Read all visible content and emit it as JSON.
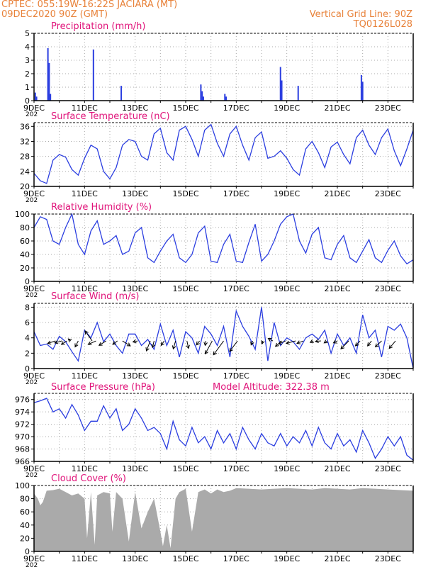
{
  "header": {
    "line1": "CPTEC:   055:19W-16:22S   JACIARA (MT)",
    "line2": "09DEC2020 90Z (GMT)",
    "grid_note": "Vertical Grid Line: 90Z",
    "model_id": "TQ0126L028"
  },
  "colors": {
    "line": "#2b3ee0",
    "title": "#e0147a",
    "header": "#e8823a",
    "bars": "#2b3ee0",
    "cloud": "#aaaaaa"
  },
  "x_tick_labels": [
    "9DEC",
    "11DEC",
    "13DEC",
    "15DEC",
    "17DEC",
    "19DEC",
    "21DEC",
    "23DEC"
  ],
  "year_fragment": "202",
  "chart_data": [
    {
      "id": "precip",
      "type": "bar",
      "title": "Precipitation (mm/h)",
      "ylim": [
        0,
        5
      ],
      "yticks": [
        0,
        1,
        2,
        3,
        4,
        5
      ],
      "x_unit": "days since 9DEC 00Z",
      "x_range": [
        0,
        15
      ],
      "points": [
        [
          0.05,
          0.6
        ],
        [
          0.1,
          0.3
        ],
        [
          0.55,
          3.9
        ],
        [
          0.6,
          2.8
        ],
        [
          0.65,
          0.5
        ],
        [
          2.35,
          3.8
        ],
        [
          3.45,
          1.1
        ],
        [
          6.6,
          1.2
        ],
        [
          6.65,
          0.7
        ],
        [
          6.7,
          0.3
        ],
        [
          7.55,
          0.5
        ],
        [
          7.6,
          0.3
        ],
        [
          9.75,
          2.5
        ],
        [
          9.8,
          1.5
        ],
        [
          10.45,
          1.1
        ],
        [
          12.95,
          1.9
        ],
        [
          13.0,
          1.4
        ]
      ]
    },
    {
      "id": "temp",
      "type": "line",
      "title": "Surface Temperature (nC)",
      "ylim": [
        20,
        37
      ],
      "yticks": [
        20,
        24,
        28,
        32,
        36
      ],
      "x_range": [
        0,
        15
      ],
      "x": [
        0,
        0.25,
        0.5,
        0.75,
        1,
        1.25,
        1.5,
        1.75,
        2,
        2.25,
        2.5,
        2.75,
        3,
        3.25,
        3.5,
        3.75,
        4,
        4.25,
        4.5,
        4.75,
        5,
        5.25,
        5.5,
        5.75,
        6,
        6.25,
        6.5,
        6.75,
        7,
        7.25,
        7.5,
        7.75,
        8,
        8.25,
        8.5,
        8.75,
        9,
        9.25,
        9.5,
        9.75,
        10,
        10.25,
        10.5,
        10.75,
        11,
        11.25,
        11.5,
        11.75,
        12,
        12.25,
        12.5,
        12.75,
        13,
        13.25,
        13.5,
        13.75,
        14,
        14.25,
        14.5,
        14.75,
        15
      ],
      "y": [
        23.5,
        21.5,
        20.8,
        27,
        28.5,
        27.8,
        24.5,
        23,
        27.5,
        31,
        30,
        24,
        22,
        25,
        31,
        32.5,
        32,
        28,
        27,
        34,
        35.5,
        29,
        27,
        35,
        36,
        32.5,
        28,
        35,
        36.5,
        31.5,
        28,
        34,
        36,
        31,
        27,
        33,
        34.5,
        27.5,
        28,
        29.5,
        27.5,
        24.5,
        23,
        30,
        32,
        29,
        25,
        30.5,
        31.8,
        28.5,
        26,
        33,
        35,
        31,
        28.5,
        33,
        35.3,
        29.5,
        25.5,
        30,
        35
      ]
    },
    {
      "id": "rh",
      "type": "line",
      "title": "Relative Humidity (%)",
      "ylim": [
        0,
        100
      ],
      "yticks": [
        0,
        20,
        40,
        60,
        80,
        100
      ],
      "x_range": [
        0,
        15
      ],
      "x": [
        0,
        0.25,
        0.5,
        0.75,
        1,
        1.25,
        1.5,
        1.75,
        2,
        2.25,
        2.5,
        2.75,
        3,
        3.25,
        3.5,
        3.75,
        4,
        4.25,
        4.5,
        4.75,
        5,
        5.25,
        5.5,
        5.75,
        6,
        6.25,
        6.5,
        6.75,
        7,
        7.25,
        7.5,
        7.75,
        8,
        8.25,
        8.5,
        8.75,
        9,
        9.25,
        9.5,
        9.75,
        10,
        10.25,
        10.5,
        10.75,
        11,
        11.25,
        11.5,
        11.75,
        12,
        12.25,
        12.5,
        12.75,
        13,
        13.25,
        13.5,
        13.75,
        14,
        14.25,
        14.5,
        14.75,
        15
      ],
      "y": [
        80,
        96,
        92,
        60,
        55,
        80,
        100,
        55,
        40,
        75,
        90,
        55,
        60,
        68,
        40,
        45,
        72,
        80,
        35,
        28,
        45,
        60,
        70,
        35,
        28,
        40,
        72,
        82,
        30,
        28,
        55,
        70,
        30,
        28,
        58,
        85,
        30,
        40,
        60,
        85,
        96,
        100,
        60,
        42,
        70,
        80,
        35,
        32,
        55,
        68,
        35,
        28,
        45,
        62,
        35,
        28,
        46,
        60,
        38,
        26,
        32
      ]
    },
    {
      "id": "wind",
      "type": "line",
      "title": "Surface Wind (m/s)",
      "ylim": [
        0,
        8.5
      ],
      "yticks": [
        0,
        2,
        4,
        6,
        8
      ],
      "x_range": [
        0,
        15
      ],
      "x": [
        0,
        0.25,
        0.5,
        0.75,
        1,
        1.25,
        1.5,
        1.75,
        2,
        2.25,
        2.5,
        2.75,
        3,
        3.25,
        3.5,
        3.75,
        4,
        4.25,
        4.5,
        4.75,
        5,
        5.25,
        5.5,
        5.75,
        6,
        6.25,
        6.5,
        6.75,
        7,
        7.25,
        7.5,
        7.75,
        8,
        8.25,
        8.5,
        8.75,
        9,
        9.25,
        9.5,
        9.75,
        10,
        10.25,
        10.5,
        10.75,
        11,
        11.25,
        11.5,
        11.75,
        12,
        12.25,
        12.5,
        12.75,
        13,
        13.25,
        13.5,
        13.75,
        14,
        14.25,
        14.5,
        14.75,
        15
      ],
      "y": [
        4.8,
        3,
        3.2,
        2.5,
        4.2,
        3.5,
        2.2,
        1,
        5,
        4,
        6,
        3.5,
        4.5,
        3,
        2,
        4.5,
        4.5,
        3,
        3.8,
        2.5,
        5.8,
        3,
        5,
        1.5,
        4.8,
        4,
        2,
        5.5,
        4.5,
        3,
        5.5,
        1.5,
        7.5,
        5.5,
        4.2,
        2.5,
        8,
        1,
        6,
        3,
        4,
        3.5,
        2.5,
        4,
        4.5,
        3.8,
        5,
        2,
        4.5,
        3,
        4,
        2,
        7,
        4,
        5,
        1.5,
        5.5,
        5,
        5.8,
        4,
        0
      ],
      "arrows": [
        [
          0.85,
          -0.5,
          0.25
        ],
        [
          1.1,
          -0.45,
          0.2
        ],
        [
          1.3,
          -0.35,
          0.35
        ],
        [
          1.45,
          -0.15,
          -0.2
        ],
        [
          1.75,
          -0.2,
          0.6
        ],
        [
          2.3,
          -0.45,
          -1.0
        ],
        [
          2.45,
          -0.5,
          0.35
        ],
        [
          2.85,
          -0.45,
          0.45
        ],
        [
          3.3,
          -0.3,
          0.35
        ],
        [
          3.5,
          0.5,
          0.5
        ],
        [
          4.1,
          -0.3,
          0.1
        ],
        [
          4.6,
          -0.25,
          1.0
        ],
        [
          4.75,
          -0.1,
          0.65
        ],
        [
          5.15,
          -0.2,
          0.45
        ],
        [
          5.6,
          -0.15,
          0.8
        ],
        [
          6.05,
          0.1,
          0.75
        ],
        [
          6.55,
          -0.2,
          0.4
        ],
        [
          6.8,
          -0.05,
          0.45
        ],
        [
          7.05,
          -0.45,
          1.3
        ],
        [
          7.5,
          -0.65,
          1.4
        ],
        [
          8.05,
          -0.5,
          1.05
        ],
        [
          8.65,
          -0.1,
          0.4
        ],
        [
          9.05,
          -0.05,
          0.3
        ],
        [
          9.45,
          -0.3,
          -0.25
        ],
        [
          9.8,
          -0.4,
          0.55
        ],
        [
          9.95,
          -0.45,
          0.3
        ],
        [
          10.35,
          -0.6,
          0.25
        ],
        [
          10.65,
          -0.4,
          0.25
        ],
        [
          11.05,
          -0.2,
          0.15
        ],
        [
          11.35,
          -0.35,
          0.05
        ],
        [
          11.6,
          -0.2,
          0.2
        ],
        [
          12.0,
          -0.25,
          0.2
        ],
        [
          12.45,
          -0.5,
          0.8
        ],
        [
          12.9,
          -0.3,
          0.5
        ],
        [
          13.35,
          -0.25,
          0.5
        ],
        [
          13.75,
          -0.4,
          0.6
        ],
        [
          14.3,
          -0.4,
          0.75
        ]
      ]
    },
    {
      "id": "press",
      "type": "line",
      "title": "Surface Pressure (hPa)",
      "subtitle": "Model Altitude: 322.38 m",
      "ylim": [
        966,
        977
      ],
      "yticks": [
        966,
        968,
        970,
        972,
        974,
        976
      ],
      "x_range": [
        0,
        15
      ],
      "x": [
        0,
        0.25,
        0.5,
        0.75,
        1,
        1.25,
        1.5,
        1.75,
        2,
        2.25,
        2.5,
        2.75,
        3,
        3.25,
        3.5,
        3.75,
        4,
        4.25,
        4.5,
        4.75,
        5,
        5.25,
        5.5,
        5.75,
        6,
        6.25,
        6.5,
        6.75,
        7,
        7.25,
        7.5,
        7.75,
        8,
        8.25,
        8.5,
        8.75,
        9,
        9.25,
        9.5,
        9.75,
        10,
        10.25,
        10.5,
        10.75,
        11,
        11.25,
        11.5,
        11.75,
        12,
        12.25,
        12.5,
        12.75,
        13,
        13.25,
        13.5,
        13.75,
        14,
        14.25,
        14.5,
        14.75,
        15
      ],
      "y": [
        975.5,
        975.8,
        976.2,
        974,
        974.5,
        973,
        975.2,
        973.5,
        971,
        972.5,
        972.5,
        975,
        973,
        974.5,
        971,
        972,
        974.5,
        973,
        971,
        971.5,
        970.5,
        968,
        972.5,
        969.5,
        968.5,
        971.5,
        969,
        970,
        968,
        971,
        969,
        970.5,
        968,
        971.5,
        969.5,
        968,
        970.5,
        969,
        968.5,
        970.5,
        968.5,
        970,
        969,
        971,
        968.5,
        971.5,
        969,
        968,
        970.5,
        968.5,
        969.5,
        967.5,
        971,
        969,
        966.5,
        968,
        970,
        968.5,
        970,
        967,
        966.2
      ]
    },
    {
      "id": "cloud",
      "type": "area",
      "title": "Cloud Cover (%)",
      "ylim": [
        0,
        100
      ],
      "yticks": [
        0,
        20,
        40,
        60,
        80,
        100
      ],
      "x_range": [
        0,
        15
      ],
      "x": [
        0,
        0.15,
        0.25,
        0.35,
        0.5,
        0.75,
        1,
        1.25,
        1.5,
        1.75,
        2,
        2.1,
        2.25,
        2.4,
        2.5,
        2.75,
        3,
        3.1,
        3.25,
        3.5,
        3.75,
        3.9,
        4,
        4.25,
        4.5,
        4.75,
        5,
        5.1,
        5.25,
        5.4,
        5.6,
        5.75,
        6,
        6.25,
        6.5,
        6.75,
        7,
        7.25,
        7.5,
        7.75,
        8,
        8.5,
        9,
        9.5,
        10,
        10.5,
        11,
        11.5,
        12,
        12.5,
        13,
        13.5,
        14,
        14.5,
        15
      ],
      "y": [
        88,
        80,
        70,
        75,
        92,
        93,
        95,
        90,
        85,
        88,
        80,
        20,
        90,
        10,
        85,
        90,
        88,
        30,
        90,
        80,
        15,
        60,
        90,
        35,
        60,
        80,
        30,
        8,
        40,
        5,
        80,
        90,
        95,
        30,
        90,
        94,
        88,
        94,
        90,
        92,
        96,
        95,
        94,
        95,
        96,
        95,
        94,
        96,
        95,
        94,
        96,
        95,
        94,
        93,
        92
      ]
    }
  ]
}
